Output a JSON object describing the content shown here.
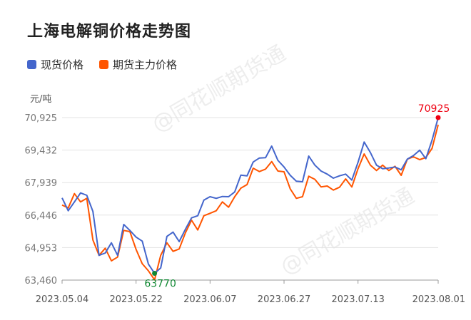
{
  "title": "上海电解铜价格走势图",
  "watermark": "@同花顺期货通",
  "chart_data": {
    "type": "line",
    "title": "上海电解铜价格走势图",
    "ylabel": "元/吨",
    "ylim": [
      63460,
      70925
    ],
    "yticks": [
      "63,460",
      "64,953",
      "66,446",
      "67,939",
      "69,432",
      "70,925"
    ],
    "ytick_values": [
      63460,
      64953,
      66446,
      67939,
      69432,
      70925
    ],
    "xtick_labels": [
      "2023.05.04",
      "2023.05.22",
      "2023.06.07",
      "2023.06.27",
      "2023.07.13",
      "2023.08.01"
    ],
    "grid": true,
    "legend_position": "top-left",
    "categories": [
      "2023.05.04",
      "2023.05.05",
      "2023.05.08",
      "2023.05.09",
      "2023.05.10",
      "2023.05.11",
      "2023.05.12",
      "2023.05.15",
      "2023.05.16",
      "2023.05.17",
      "2023.05.18",
      "2023.05.19",
      "2023.05.22",
      "2023.05.23",
      "2023.05.24",
      "2023.05.25",
      "2023.05.26",
      "2023.05.29",
      "2023.05.30",
      "2023.05.31",
      "2023.06.01",
      "2023.06.02",
      "2023.06.05",
      "2023.06.06",
      "2023.06.07",
      "2023.06.08",
      "2023.06.09",
      "2023.06.12",
      "2023.06.13",
      "2023.06.14",
      "2023.06.15",
      "2023.06.16",
      "2023.06.19",
      "2023.06.20",
      "2023.06.21",
      "2023.06.26",
      "2023.06.27",
      "2023.06.28",
      "2023.06.29",
      "2023.06.30",
      "2023.07.03",
      "2023.07.04",
      "2023.07.05",
      "2023.07.06",
      "2023.07.07",
      "2023.07.10",
      "2023.07.11",
      "2023.07.12",
      "2023.07.13",
      "2023.07.14",
      "2023.07.17",
      "2023.07.18",
      "2023.07.19",
      "2023.07.20",
      "2023.07.21",
      "2023.07.24",
      "2023.07.25",
      "2023.07.26",
      "2023.07.27",
      "2023.07.28",
      "2023.07.31",
      "2023.08.01"
    ],
    "series": [
      {
        "name": "现货价格",
        "color": "#4466cc",
        "values": [
          67235,
          66646,
          67051,
          67465,
          67356,
          66614,
          64596,
          64704,
          65173,
          64596,
          66014,
          65741,
          65435,
          65250,
          64191,
          63770,
          64017,
          65468,
          65665,
          65228,
          65796,
          66319,
          66417,
          67138,
          67291,
          67215,
          67302,
          67291,
          67509,
          68284,
          68251,
          68885,
          69069,
          69082,
          69615,
          68961,
          68655,
          68273,
          68000,
          67978,
          69157,
          68742,
          68469,
          68328,
          68142,
          68251,
          68328,
          68055,
          68873,
          69801,
          69321,
          68742,
          68579,
          68611,
          68655,
          68524,
          69015,
          69179,
          69430,
          69037,
          69888,
          70925
        ]
      },
      {
        "name": "期货主力价格",
        "color": "#ff5500",
        "values": [
          66908,
          66777,
          67432,
          67051,
          67215,
          65304,
          64596,
          64924,
          64344,
          64518,
          65741,
          65687,
          64868,
          64213,
          63886,
          63470,
          64596,
          65173,
          64780,
          64891,
          65631,
          66210,
          65762,
          66417,
          66528,
          66646,
          67051,
          66810,
          67291,
          67684,
          67847,
          68600,
          68447,
          68557,
          68906,
          68469,
          68437,
          67651,
          67215,
          67291,
          68229,
          68088,
          67738,
          67782,
          67596,
          67727,
          68109,
          67738,
          68579,
          69255,
          68742,
          68491,
          68742,
          68491,
          68688,
          68273,
          69015,
          69124,
          68993,
          69092,
          69506,
          70598
        ]
      }
    ],
    "annotations": [
      {
        "label": "63770",
        "series": "现货价格",
        "x": "2023.05.25",
        "value": 63770,
        "color": "#118833"
      },
      {
        "label": "70925",
        "series": "现货价格",
        "x": "2023.08.01",
        "value": 70925,
        "color": "#ee0011"
      }
    ]
  }
}
